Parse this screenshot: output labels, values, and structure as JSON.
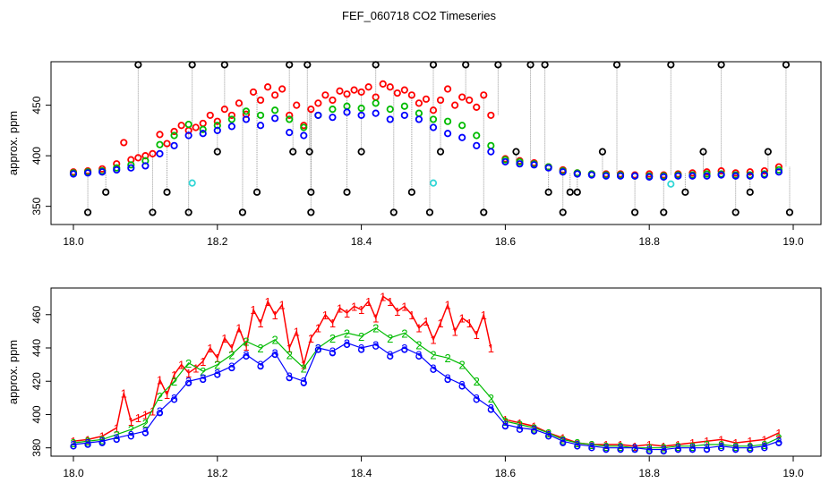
{
  "title": "FEF_060718  CO2 Timeseries",
  "colors": {
    "series1": "#ff0000",
    "series2": "#00bb00",
    "series3": "#0000ff",
    "flag": "#000000",
    "alt": "#33d6d6",
    "spike": "#999999"
  },
  "chart_data": [
    {
      "type": "scatter",
      "ylabel": "approx. ppm",
      "xlabel": "",
      "xlim": [
        18.0,
        19.0
      ],
      "ylim": [
        332,
        493
      ],
      "xticks": [
        "18.0",
        "18.2",
        "18.4",
        "18.6",
        "18.8",
        "19.0"
      ],
      "yticks": [
        "350",
        "400",
        "450"
      ],
      "series": [
        {
          "name": "1",
          "x": [
            18.0,
            18.02,
            18.04,
            18.06,
            18.07,
            18.08,
            18.09,
            18.1,
            18.11,
            18.12,
            18.13,
            18.14,
            18.15,
            18.16,
            18.17,
            18.18,
            18.19,
            18.2,
            18.21,
            18.22,
            18.23,
            18.24,
            18.25,
            18.26,
            18.27,
            18.28,
            18.29,
            18.3,
            18.31,
            18.32,
            18.33,
            18.34,
            18.35,
            18.36,
            18.37,
            18.38,
            18.39,
            18.4,
            18.41,
            18.42,
            18.43,
            18.44,
            18.45,
            18.46,
            18.47,
            18.48,
            18.49,
            18.5,
            18.51,
            18.52,
            18.53,
            18.54,
            18.55,
            18.56,
            18.57,
            18.58,
            18.6,
            18.62,
            18.64,
            18.66,
            18.68,
            18.7,
            18.72,
            18.74,
            18.76,
            18.78,
            18.8,
            18.82,
            18.84,
            18.86,
            18.88,
            18.9,
            18.92,
            18.94,
            18.96,
            18.98
          ],
          "y": [
            384,
            385,
            387,
            392,
            413,
            396,
            398,
            400,
            402,
            421,
            412,
            424,
            430,
            425,
            428,
            432,
            440,
            434,
            446,
            440,
            452,
            441,
            463,
            455,
            468,
            460,
            466,
            440,
            450,
            430,
            446,
            452,
            460,
            455,
            464,
            461,
            465,
            463,
            468,
            458,
            471,
            468,
            462,
            465,
            460,
            452,
            456,
            445,
            455,
            466,
            450,
            458,
            455,
            448,
            460,
            440,
            397,
            395,
            393,
            389,
            386,
            383,
            382,
            382,
            382,
            381,
            382,
            381,
            382,
            383,
            384,
            385,
            383,
            384,
            385,
            389
          ]
        },
        {
          "name": "2",
          "x": [
            18.0,
            18.02,
            18.04,
            18.06,
            18.08,
            18.1,
            18.12,
            18.14,
            18.16,
            18.18,
            18.2,
            18.22,
            18.24,
            18.26,
            18.28,
            18.3,
            18.32,
            18.34,
            18.36,
            18.38,
            18.4,
            18.42,
            18.44,
            18.46,
            18.48,
            18.5,
            18.52,
            18.54,
            18.56,
            18.58,
            18.6,
            18.62,
            18.64,
            18.66,
            18.68,
            18.7,
            18.72,
            18.74,
            18.76,
            18.78,
            18.8,
            18.82,
            18.84,
            18.86,
            18.88,
            18.9,
            18.92,
            18.94,
            18.96,
            18.98
          ],
          "y": [
            383,
            384,
            385,
            388,
            391,
            395,
            411,
            420,
            431,
            426,
            430,
            436,
            444,
            440,
            445,
            436,
            428,
            440,
            446,
            449,
            447,
            452,
            446,
            449,
            442,
            436,
            434,
            430,
            420,
            410,
            396,
            394,
            392,
            389,
            385,
            383,
            382,
            381,
            381,
            380,
            380,
            380,
            381,
            381,
            382,
            382,
            381,
            381,
            382,
            386
          ]
        },
        {
          "name": "3",
          "x": [
            18.0,
            18.02,
            18.04,
            18.06,
            18.08,
            18.1,
            18.12,
            18.14,
            18.16,
            18.18,
            18.2,
            18.22,
            18.24,
            18.26,
            18.28,
            18.3,
            18.32,
            18.34,
            18.36,
            18.38,
            18.4,
            18.42,
            18.44,
            18.46,
            18.48,
            18.5,
            18.52,
            18.54,
            18.56,
            18.58,
            18.6,
            18.62,
            18.64,
            18.66,
            18.68,
            18.7,
            18.72,
            18.74,
            18.76,
            18.78,
            18.8,
            18.82,
            18.84,
            18.86,
            18.88,
            18.9,
            18.92,
            18.94,
            18.96,
            18.98
          ],
          "y": [
            382,
            383,
            384,
            386,
            388,
            390,
            402,
            410,
            420,
            422,
            425,
            429,
            436,
            430,
            437,
            423,
            420,
            440,
            438,
            443,
            440,
            442,
            436,
            440,
            436,
            428,
            422,
            418,
            410,
            404,
            394,
            392,
            391,
            388,
            384,
            382,
            381,
            380,
            380,
            380,
            379,
            379,
            380,
            380,
            380,
            381,
            380,
            380,
            381,
            384
          ]
        },
        {
          "name": "flag",
          "x": [
            18.02,
            18.045,
            18.09,
            18.11,
            18.13,
            18.16,
            18.165,
            18.2,
            18.21,
            18.235,
            18.255,
            18.3,
            18.305,
            18.325,
            18.328,
            18.33,
            18.33,
            18.38,
            18.4,
            18.42,
            18.445,
            18.47,
            18.495,
            18.5,
            18.51,
            18.545,
            18.57,
            18.59,
            18.615,
            18.635,
            18.655,
            18.66,
            18.68,
            18.69,
            18.7,
            18.735,
            18.755,
            18.78,
            18.82,
            18.83,
            18.85,
            18.875,
            18.9,
            18.92,
            18.94,
            18.965,
            18.99,
            18.995
          ],
          "y": [
            344,
            364,
            490,
            344,
            364,
            344,
            490,
            404,
            490,
            344,
            364,
            490,
            404,
            490,
            404,
            364,
            344,
            364,
            404,
            490,
            344,
            364,
            344,
            490,
            404,
            490,
            344,
            490,
            404,
            490,
            490,
            364,
            344,
            364,
            364,
            404,
            490,
            344,
            344,
            490,
            364,
            404,
            490,
            344,
            364,
            404,
            490,
            344
          ]
        },
        {
          "name": "alt",
          "x": [
            18.165,
            18.5,
            18.83
          ],
          "y": [
            373,
            373,
            372
          ]
        }
      ]
    },
    {
      "type": "line",
      "ylabel": "approx. ppm",
      "xlabel": "",
      "xlim": [
        18.0,
        19.0
      ],
      "ylim": [
        375,
        476
      ],
      "xticks": [
        "18.0",
        "18.2",
        "18.4",
        "18.6",
        "18.8",
        "19.0"
      ],
      "yticks": [
        "380",
        "400",
        "420",
        "440",
        "460"
      ],
      "series": [
        {
          "name": "1",
          "x": [
            18.0,
            18.02,
            18.04,
            18.06,
            18.07,
            18.08,
            18.09,
            18.1,
            18.11,
            18.12,
            18.13,
            18.14,
            18.15,
            18.16,
            18.17,
            18.18,
            18.19,
            18.2,
            18.21,
            18.22,
            18.23,
            18.24,
            18.25,
            18.26,
            18.27,
            18.28,
            18.29,
            18.3,
            18.31,
            18.32,
            18.33,
            18.34,
            18.35,
            18.36,
            18.37,
            18.38,
            18.39,
            18.4,
            18.41,
            18.42,
            18.43,
            18.44,
            18.45,
            18.46,
            18.47,
            18.48,
            18.49,
            18.5,
            18.51,
            18.52,
            18.53,
            18.54,
            18.55,
            18.56,
            18.57,
            18.58,
            18.6,
            18.62,
            18.64,
            18.66,
            18.68,
            18.7,
            18.72,
            18.74,
            18.76,
            18.78,
            18.8,
            18.82,
            18.84,
            18.86,
            18.88,
            18.9,
            18.92,
            18.94,
            18.96,
            18.98
          ],
          "y": [
            384,
            385,
            387,
            392,
            413,
            396,
            398,
            400,
            402,
            421,
            412,
            424,
            430,
            425,
            428,
            432,
            440,
            434,
            446,
            440,
            452,
            441,
            463,
            455,
            468,
            460,
            466,
            440,
            450,
            430,
            446,
            452,
            460,
            455,
            464,
            461,
            465,
            463,
            468,
            458,
            471,
            468,
            462,
            465,
            460,
            452,
            456,
            445,
            455,
            466,
            450,
            458,
            455,
            448,
            460,
            440,
            397,
            395,
            393,
            389,
            386,
            383,
            382,
            382,
            382,
            381,
            382,
            381,
            382,
            383,
            384,
            385,
            383,
            384,
            385,
            389
          ]
        },
        {
          "name": "2",
          "x": [
            18.0,
            18.02,
            18.04,
            18.06,
            18.08,
            18.1,
            18.12,
            18.14,
            18.16,
            18.18,
            18.2,
            18.22,
            18.24,
            18.26,
            18.28,
            18.3,
            18.32,
            18.34,
            18.36,
            18.38,
            18.4,
            18.42,
            18.44,
            18.46,
            18.48,
            18.5,
            18.52,
            18.54,
            18.56,
            18.58,
            18.6,
            18.62,
            18.64,
            18.66,
            18.68,
            18.7,
            18.72,
            18.74,
            18.76,
            18.78,
            18.8,
            18.82,
            18.84,
            18.86,
            18.88,
            18.9,
            18.92,
            18.94,
            18.96,
            18.98
          ],
          "y": [
            383,
            384,
            385,
            388,
            391,
            395,
            411,
            420,
            431,
            426,
            430,
            436,
            444,
            440,
            445,
            436,
            428,
            440,
            446,
            449,
            447,
            452,
            446,
            449,
            442,
            436,
            434,
            430,
            420,
            410,
            396,
            394,
            392,
            389,
            385,
            383,
            382,
            381,
            381,
            380,
            380,
            380,
            381,
            381,
            382,
            382,
            381,
            381,
            382,
            386
          ]
        },
        {
          "name": "3",
          "x": [
            18.0,
            18.02,
            18.04,
            18.06,
            18.08,
            18.1,
            18.12,
            18.14,
            18.16,
            18.18,
            18.2,
            18.22,
            18.24,
            18.26,
            18.28,
            18.3,
            18.32,
            18.34,
            18.36,
            18.38,
            18.4,
            18.42,
            18.44,
            18.46,
            18.48,
            18.5,
            18.52,
            18.54,
            18.56,
            18.58,
            18.6,
            18.62,
            18.64,
            18.66,
            18.68,
            18.7,
            18.72,
            18.74,
            18.76,
            18.78,
            18.8,
            18.82,
            18.84,
            18.86,
            18.88,
            18.9,
            18.92,
            18.94,
            18.96,
            18.98
          ],
          "y": [
            382,
            383,
            384,
            386,
            388,
            390,
            402,
            410,
            420,
            422,
            425,
            429,
            436,
            430,
            437,
            423,
            420,
            440,
            438,
            443,
            440,
            442,
            436,
            440,
            436,
            428,
            422,
            418,
            410,
            404,
            394,
            392,
            391,
            388,
            384,
            382,
            381,
            380,
            380,
            380,
            379,
            379,
            380,
            380,
            380,
            381,
            380,
            380,
            381,
            384
          ]
        }
      ]
    }
  ]
}
